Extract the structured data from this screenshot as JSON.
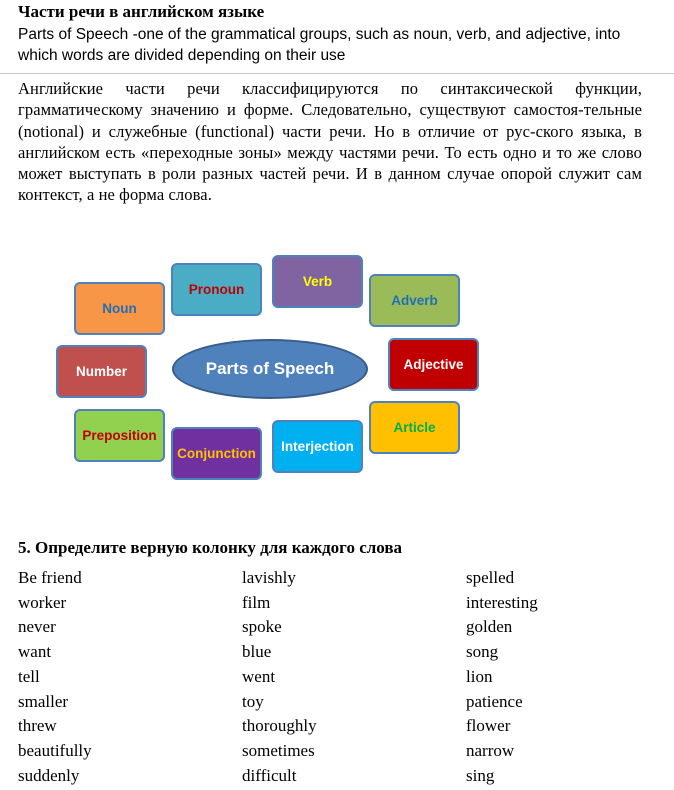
{
  "title": "Части речи в английском языке",
  "subtitle": "Parts of Speech -one of the grammatical groups, such as noun, verb, and adjective, into which words are divided depending on their use",
  "intro": "Английские части речи классифицируются по синтаксической функции, грамматическому значению и форме. Следовательно, существуют самостоя-тельные (notional) и служебные (functional) части речи. Но в отличие от рус-ского языка, в английском есть «переходные зоны» между частями речи. То есть одно и то же слово может выступать в роли разных частей речи. И в данном случае опорой служит сам контекст, а не форма слова.",
  "diagram": {
    "center": {
      "label": "Parts of Speech",
      "fill": "#4f81bd",
      "text_color": "#ffffff"
    },
    "items": [
      {
        "label": "Noun",
        "fill": "#f79646",
        "text_color": "#1f6fb5"
      },
      {
        "label": "Pronoun",
        "fill": "#4bacc6",
        "text_color": "#c00000"
      },
      {
        "label": "Verb",
        "fill": "#8064a2",
        "text_color": "#ffff00"
      },
      {
        "label": "Adverb",
        "fill": "#9bbb59",
        "text_color": "#1f6fb5"
      },
      {
        "label": "Number",
        "fill": "#c0504d",
        "text_color": "#ffffff"
      },
      {
        "label": "Adjective",
        "fill": "#c00000",
        "text_color": "#ffffff"
      },
      {
        "label": "Preposition",
        "fill": "#92d050",
        "text_color": "#c00000"
      },
      {
        "label": "Conjunction",
        "fill": "#7030a0",
        "text_color": "#ffc000"
      },
      {
        "label": "Interjection",
        "fill": "#00b0f0",
        "text_color": "#ffffff"
      },
      {
        "label": "Article",
        "fill": "#ffc000",
        "text_color": "#00b050"
      }
    ]
  },
  "task": {
    "title": "5. Определите верную колонку для каждого слова",
    "columns": [
      [
        "Be friend",
        "worker",
        "never",
        "want",
        "tell",
        "smaller",
        "threw",
        "beautifully",
        "suddenly"
      ],
      [
        "lavishly",
        "film",
        "spoke",
        "blue",
        "went",
        "toy",
        "thoroughly",
        "sometimes",
        "difficult"
      ],
      [
        "spelled",
        "interesting",
        "golden",
        "song",
        "lion",
        "patience",
        "flower",
        "narrow",
        "sing"
      ]
    ]
  }
}
